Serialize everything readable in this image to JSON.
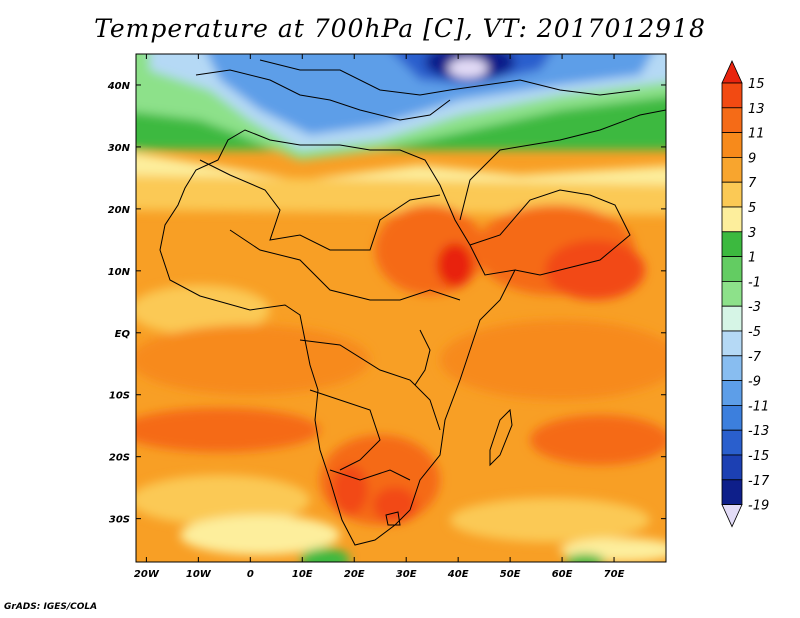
{
  "title": "Temperature at 700hPa [C], VT: 2017012918",
  "credit": "GrADS: IGES/COLA",
  "map": {
    "lon_range": [
      -22,
      80
    ],
    "lat_range": [
      -37,
      45
    ],
    "x_ticks": [
      "20W",
      "10W",
      "0",
      "10E",
      "20E",
      "30E",
      "40E",
      "50E",
      "60E",
      "70E"
    ],
    "y_ticks": [
      "40N",
      "30N",
      "20N",
      "10N",
      "EQ",
      "10S",
      "20S",
      "30S"
    ]
  },
  "colorbar": {
    "labels": [
      "15",
      "13",
      "11",
      "9",
      "7",
      "5",
      "3",
      "1",
      "-1",
      "-3",
      "-5",
      "-7",
      "-9",
      "-11",
      "-13",
      "-15",
      "-17",
      "-19"
    ],
    "colors": [
      "#e8240e",
      "#f24a12",
      "#f56b17",
      "#f78a1b",
      "#f8a52e",
      "#fbc955",
      "#fdee9c",
      "#3cb93f",
      "#63cc62",
      "#8de18a",
      "#d6f5e6",
      "#b5d9f5",
      "#88bdf0",
      "#5d9ee8",
      "#3c7fdd",
      "#2a5fcd",
      "#1c40b3",
      "#0e1f8a",
      "#e3dcf7"
    ],
    "end_colors": {
      "top": "#e8240e",
      "bottom": "#e3dcf7"
    }
  }
}
